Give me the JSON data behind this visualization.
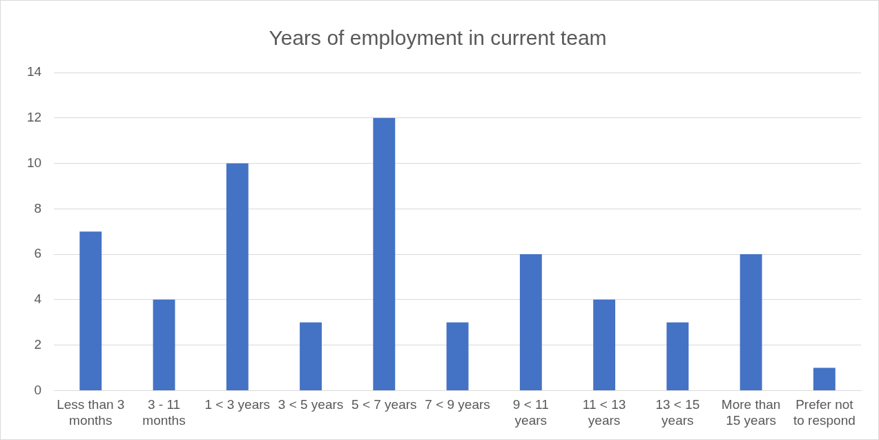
{
  "chart_data": {
    "type": "bar",
    "title": "Years of employment in current team",
    "categories": [
      "Less than 3 months",
      "3 - 11 months",
      "1 < 3 years",
      "3 < 5 years",
      "5 < 7 years",
      "7 < 9 years",
      "9 < 11 years",
      "11 < 13 years",
      "13 < 15 years",
      "More than 15 years",
      "Prefer not to respond"
    ],
    "values": [
      7,
      4,
      10,
      3,
      12,
      3,
      6,
      4,
      3,
      6,
      1
    ],
    "color": "#4472c4",
    "ylim": [
      0,
      14
    ],
    "yticks": [
      0,
      2,
      4,
      6,
      8,
      10,
      12,
      14
    ],
    "grid": "y",
    "legend": false
  }
}
